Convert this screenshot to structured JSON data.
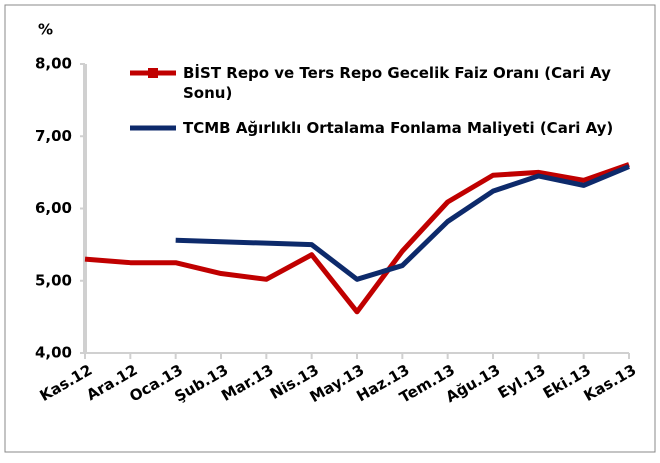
{
  "chart_data": {
    "type": "line",
    "y_label": "%",
    "categories": [
      "Kas.12",
      "Ara.12",
      "Oca.13",
      "Şub.13",
      "Mar.13",
      "Nis.13",
      "May.13",
      "Haz.13",
      "Tem.13",
      "Ağu.13",
      "Eyl.13",
      "Eki.13",
      "Kas.13"
    ],
    "series": [
      {
        "name": "BİST Repo ve Ters Repo Gecelik Faiz Oranı (Cari Ay Sonu)",
        "color": "#c00000",
        "values": [
          5.3,
          5.25,
          5.25,
          5.1,
          5.02,
          5.36,
          4.57,
          5.41,
          6.09,
          6.46,
          6.5,
          6.39,
          6.61
        ]
      },
      {
        "name": "TCMB Ağırlıklı Ortalama Fonlama Maliyeti (Cari Ay)",
        "color": "#0d2a6b",
        "values": [
          null,
          null,
          5.56,
          5.54,
          5.52,
          5.5,
          5.02,
          5.21,
          5.82,
          6.24,
          6.45,
          6.32,
          6.58
        ]
      }
    ],
    "ylim": [
      4,
      8
    ],
    "yticks": [
      {
        "value": 4,
        "label": "4,00"
      },
      {
        "value": 5,
        "label": "5,00"
      },
      {
        "value": 6,
        "label": "6,00"
      },
      {
        "value": 7,
        "label": "7,00"
      },
      {
        "value": 8,
        "label": "8,00"
      }
    ],
    "grid": false
  }
}
